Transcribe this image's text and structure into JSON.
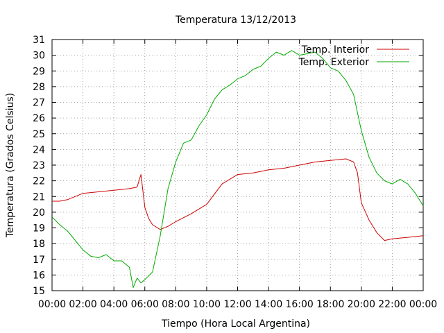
{
  "chart_data": {
    "type": "line",
    "title": "Temperatura 13/12/2013",
    "xlabel": "Tiempo (Hora Local Argentina)",
    "ylabel": "Temperatura (Grados Celsius)",
    "ylim": [
      15,
      31
    ],
    "xlim": [
      "00:00",
      "24:00"
    ],
    "grid": true,
    "legend_position": "top-right",
    "x_ticks": [
      "00:00",
      "02:00",
      "04:00",
      "06:00",
      "08:00",
      "10:00",
      "12:00",
      "14:00",
      "16:00",
      "18:00",
      "20:00",
      "22:00",
      "00:00"
    ],
    "y_ticks": [
      15,
      16,
      17,
      18,
      19,
      20,
      21,
      22,
      23,
      24,
      25,
      26,
      27,
      28,
      29,
      30,
      31
    ],
    "series": [
      {
        "name": "Temp. Interior",
        "color": "#cc0000",
        "x": [
          "00:00",
          "00:30",
          "01:00",
          "02:00",
          "03:00",
          "04:00",
          "05:00",
          "05:30",
          "05:45",
          "06:00",
          "06:15",
          "06:30",
          "07:00",
          "07:30",
          "08:00",
          "09:00",
          "10:00",
          "11:00",
          "12:00",
          "13:00",
          "14:00",
          "15:00",
          "16:00",
          "17:00",
          "18:00",
          "19:00",
          "19:30",
          "19:45",
          "20:00",
          "20:30",
          "21:00",
          "21:30",
          "22:00",
          "23:00",
          "24:00"
        ],
        "values": [
          20.7,
          20.7,
          20.8,
          21.2,
          21.3,
          21.4,
          21.5,
          21.6,
          22.4,
          20.3,
          19.6,
          19.2,
          18.9,
          19.1,
          19.4,
          19.9,
          20.5,
          21.8,
          22.4,
          22.5,
          22.7,
          22.8,
          23.0,
          23.2,
          23.3,
          23.4,
          23.2,
          22.5,
          20.6,
          19.5,
          18.7,
          18.2,
          18.3,
          18.4,
          18.5
        ]
      },
      {
        "name": "Temp. Exterior",
        "color": "#00aa00",
        "x": [
          "00:00",
          "00:30",
          "01:00",
          "02:00",
          "02:30",
          "03:00",
          "03:30",
          "04:00",
          "04:30",
          "05:00",
          "05:15",
          "05:30",
          "05:45",
          "06:00",
          "06:30",
          "07:00",
          "07:30",
          "08:00",
          "08:30",
          "09:00",
          "09:30",
          "10:00",
          "10:30",
          "11:00",
          "11:30",
          "12:00",
          "12:30",
          "13:00",
          "13:30",
          "14:00",
          "14:30",
          "15:00",
          "15:30",
          "16:00",
          "16:30",
          "17:00",
          "17:30",
          "18:00",
          "18:30",
          "19:00",
          "19:30",
          "20:00",
          "20:30",
          "21:00",
          "21:30",
          "22:00",
          "22:30",
          "23:00",
          "23:30",
          "24:00"
        ],
        "values": [
          19.7,
          19.2,
          18.8,
          17.6,
          17.2,
          17.1,
          17.3,
          16.9,
          16.9,
          16.5,
          15.2,
          15.8,
          15.5,
          15.7,
          16.2,
          18.5,
          21.5,
          23.2,
          24.4,
          24.6,
          25.5,
          26.2,
          27.2,
          27.8,
          28.1,
          28.5,
          28.7,
          29.1,
          29.3,
          29.8,
          30.2,
          30.0,
          30.3,
          30.0,
          30.1,
          30.2,
          29.8,
          29.2,
          29.0,
          28.4,
          27.5,
          25.2,
          23.5,
          22.5,
          22.0,
          21.8,
          22.1,
          21.8,
          21.2,
          20.4
        ]
      }
    ]
  }
}
